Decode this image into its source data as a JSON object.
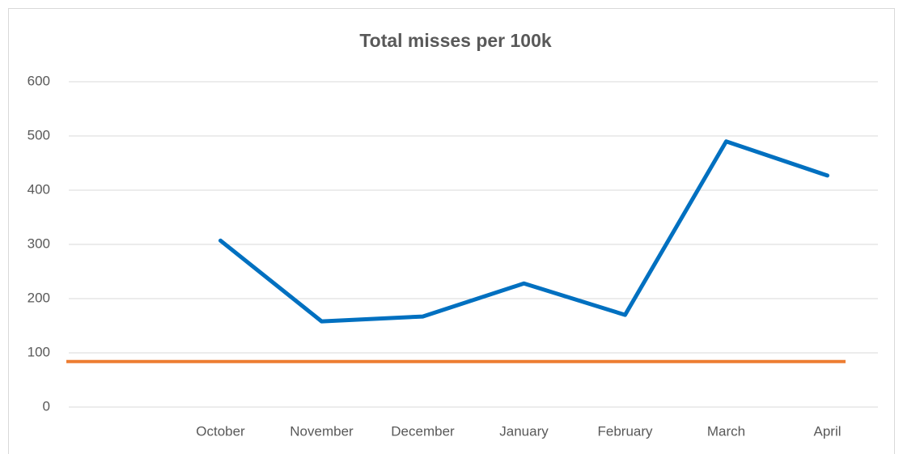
{
  "chart_data": {
    "type": "line",
    "title": "Total misses per 100k",
    "categories": [
      null,
      "October",
      "November",
      "December",
      "January",
      "February",
      "March",
      "April"
    ],
    "series": [
      {
        "color": "#0070c0",
        "values": [
          null,
          307,
          158,
          167,
          228,
          170,
          490,
          427
        ]
      }
    ],
    "reference_line": {
      "value": 84,
      "color": "#ed7d31"
    },
    "ylim": [
      0,
      600
    ],
    "yticks": [
      0,
      100,
      200,
      300,
      400,
      500,
      600
    ],
    "grid": true
  }
}
